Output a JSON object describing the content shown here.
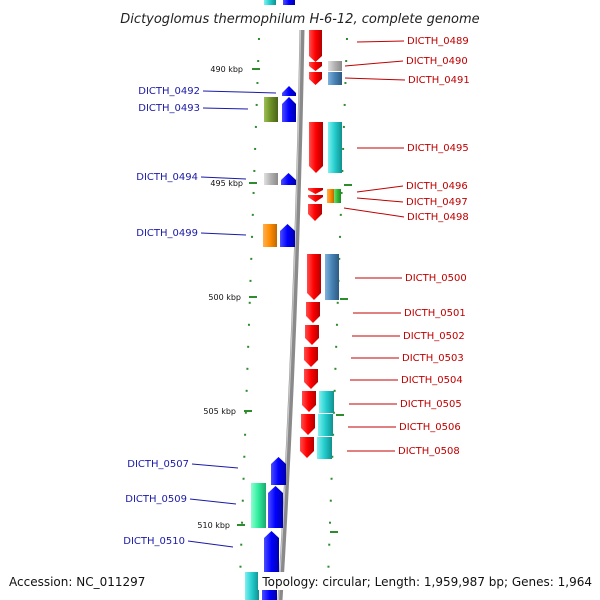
{
  "title": "Dictyoglomus thermophilum H-6-12, complete genome",
  "accession": "Accession: NC_011297",
  "summary": "Topology: circular; Length: 1,959,987 bp; Genes: 1,964",
  "ticks": [
    "490 kbp",
    "495 kbp",
    "500 kbp",
    "505 kbp",
    "510 kbp"
  ],
  "left_genes": [
    "DICTH_0492",
    "DICTH_0493",
    "DICTH_0494",
    "DICTH_0499",
    "DICTH_0507",
    "DICTH_0509",
    "DICTH_0510"
  ],
  "right_genes": [
    "DICTH_0489",
    "DICTH_0490",
    "DICTH_0491",
    "DICTH_0495",
    "DICTH_0496",
    "DICTH_0497",
    "DICTH_0498",
    "DICTH_0500",
    "DICTH_0501",
    "DICTH_0502",
    "DICTH_0503",
    "DICTH_0504",
    "DICTH_0505",
    "DICTH_0506",
    "DICTH_0508"
  ],
  "colors": {
    "minus_strand": "#ff0000",
    "plus_strand": "#0000ff",
    "left_label": "#1a1aa8",
    "right_label": "#c00000",
    "backbone": "#888888",
    "tick_marks": "#2e8b2e",
    "cog_cyan": "#22cccc",
    "cog_steelblue": "#4682b4",
    "cog_olive": "#6b8e23",
    "cog_orange": "#ff8c00",
    "cog_grey": "#b0b0b0",
    "cog_springgreen": "#2eeb9c",
    "cog_green": "#33bb33"
  }
}
